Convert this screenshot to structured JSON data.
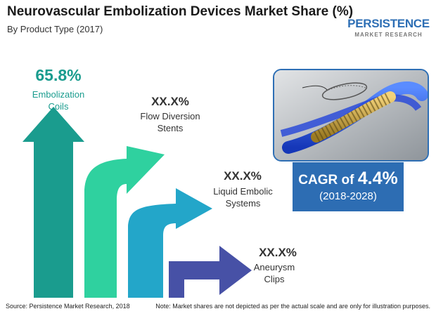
{
  "title": "Neurovascular Embolization Devices Market Share (%)",
  "subtitle": "By Product Type (2017)",
  "logo": {
    "main": "PERSISTENCE",
    "sub": "MARKET RESEARCH"
  },
  "colors": {
    "coils": "#1a9c8e",
    "flow_diversion": "#2fd19f",
    "liquid_embolic": "#23a6c9",
    "aneurysm_clips": "#4751a6",
    "accent_blue": "#2d6db3"
  },
  "chart_data": {
    "type": "bar",
    "title": "Neurovascular Embolization Devices Market Share (%)",
    "subtitle": "By Product Type (2017)",
    "categories": [
      "Embolization Coils",
      "Flow Diversion Stents",
      "Liquid Embolic Systems",
      "Aneurysm Clips"
    ],
    "value_labels": [
      "65.8%",
      "XX.X%",
      "XX.X%",
      "XX.X%"
    ],
    "values": [
      65.8,
      null,
      null,
      null
    ],
    "category_lines": [
      [
        "Embolization",
        "Coils"
      ],
      [
        "Flow Diversion",
        "Stents"
      ],
      [
        "Liquid Embolic",
        "Systems"
      ],
      [
        "Aneurysm",
        "Clips"
      ]
    ]
  },
  "cagr": {
    "prefix": "CAGR of ",
    "value": "4.4%",
    "period": "(2018-2028)"
  },
  "image_alt": "neurovascular-stent-device",
  "footer": {
    "source": "Source: Persistence Market Research, 2018",
    "note": "Note: Market shares are not depicted as per the actual scale and are only for illustration purposes."
  }
}
